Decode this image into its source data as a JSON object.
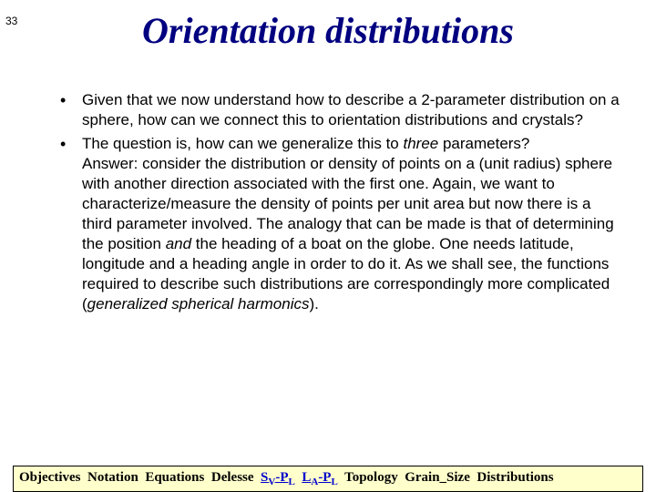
{
  "page_number": "33",
  "title": "Orientation distributions",
  "bullets": [
    "Given that we now understand how to describe a 2-parameter distribution on a sphere, how can we connect this to orientation distributions and crystals?",
    "The question is, how can we generalize this to <i>three</i> parameters?<br>Answer: consider the distribution or density of points on a (unit radius) sphere with another direction associated with the first one.  Again, we want to characterize/measure the density of points per unit area but now there is a third parameter involved.  The analogy that can be made is that of determining the position <i>and</i> the heading of a boat on the globe.  One needs latitude, longitude and a heading angle in order to do it.  As we shall see, the functions required to describe such distributions are correspondingly more complicated (<i>generalized spherical harmonics</i>)."
  ],
  "footer": {
    "items": [
      "Objectives",
      "Notation",
      "Equations",
      "Delesse",
      "S<span class=\"sub\">V</span>-P<span class=\"sub\">L</span>",
      "L<span class=\"sub\">A</span>-P<span class=\"sub\">L</span>",
      "Topology",
      "Grain_Size",
      "Distributions"
    ],
    "link_color": "#0000cc"
  },
  "colors": {
    "title": "#000080",
    "footer_bg": "#ffffcc",
    "text": "#000000"
  }
}
